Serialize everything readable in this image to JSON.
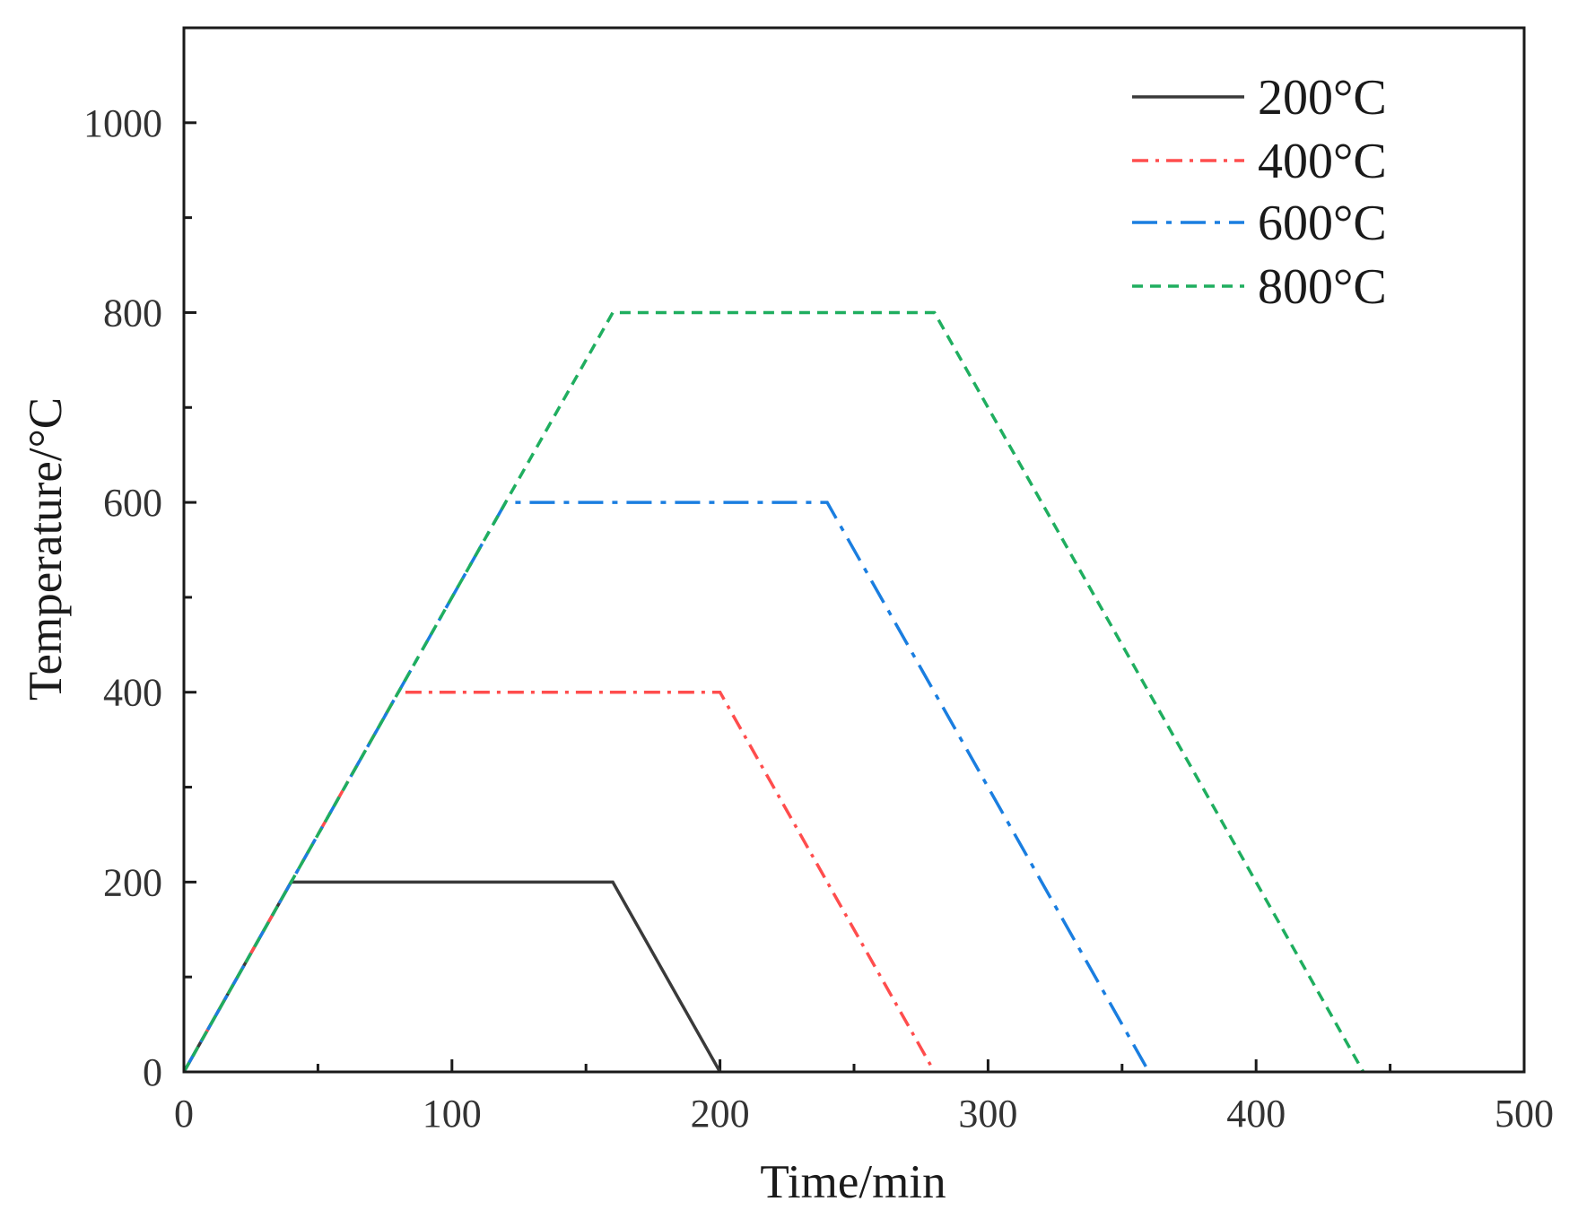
{
  "chart_data": {
    "type": "line",
    "title": "",
    "xlabel": "Time/min",
    "ylabel": "Temperature/°C",
    "xlim": [
      0,
      500
    ],
    "ylim": [
      0,
      1100
    ],
    "x_ticks": [
      0,
      100,
      200,
      300,
      400,
      500
    ],
    "x_tick_labels": [
      "0",
      "100",
      "200",
      "300",
      "400",
      "500"
    ],
    "x_minor_ticks": [
      50,
      150,
      250,
      350,
      450
    ],
    "y_ticks": [
      0,
      200,
      400,
      600,
      800,
      1000
    ],
    "y_tick_labels": [
      "0",
      "200",
      "400",
      "600",
      "800",
      "1000"
    ],
    "y_minor_ticks": [
      100,
      300,
      500,
      700,
      900
    ],
    "grid": false,
    "legend_position": "top-right",
    "series": [
      {
        "name": "200°C",
        "color": "#3a3a3a",
        "x": [
          0,
          40,
          160,
          200
        ],
        "y": [
          0,
          200,
          200,
          0
        ]
      },
      {
        "name": "400°C",
        "color": "#ff4d4d",
        "x": [
          0,
          80,
          200,
          280
        ],
        "y": [
          0,
          400,
          400,
          0
        ]
      },
      {
        "name": "600°C",
        "color": "#1a7ee0",
        "x": [
          0,
          120,
          240,
          360
        ],
        "y": [
          0,
          600,
          600,
          0
        ]
      },
      {
        "name": "800°C",
        "color": "#1fae5f",
        "x": [
          0,
          160,
          280,
          440
        ],
        "y": [
          0,
          800,
          800,
          0
        ]
      }
    ]
  }
}
